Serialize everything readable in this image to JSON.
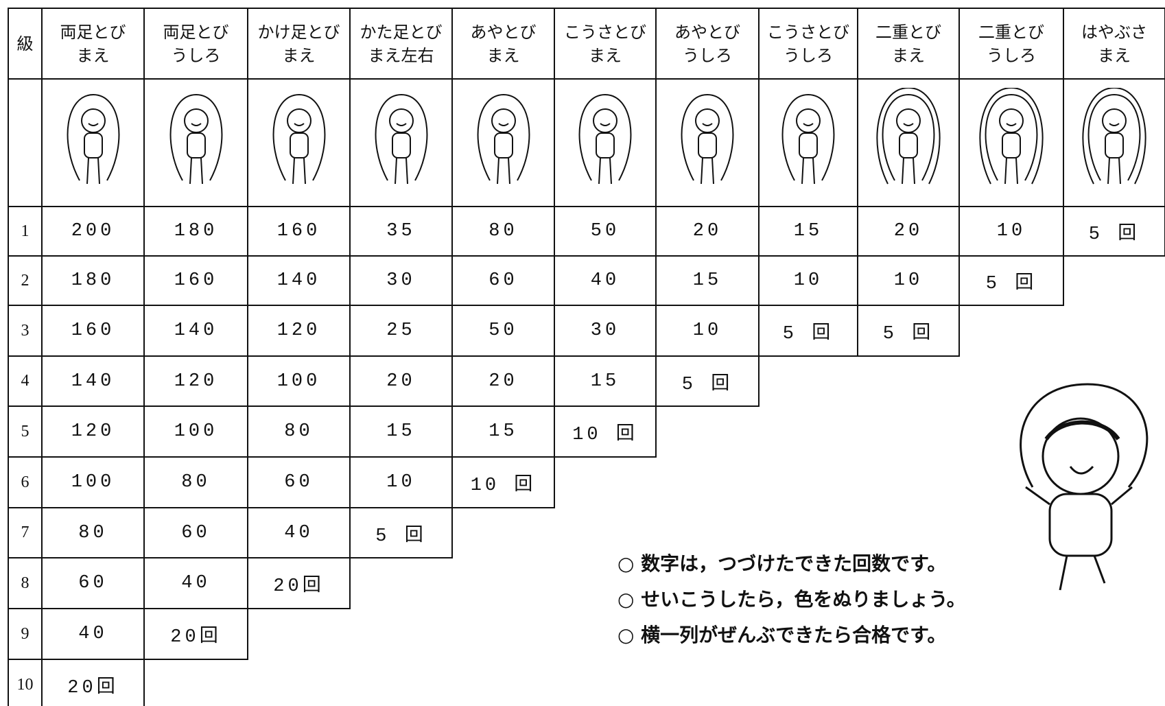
{
  "table": {
    "grade_header": "級",
    "columns": [
      [
        "両足とび",
        "まえ"
      ],
      [
        "両足とび",
        "うしろ"
      ],
      [
        "かけ足とび",
        "まえ"
      ],
      [
        "かた足とび",
        "まえ左右"
      ],
      [
        "あやとび",
        "まえ"
      ],
      [
        "こうさとび",
        "まえ"
      ],
      [
        "あやとび",
        "うしろ"
      ],
      [
        "こうさとび",
        "うしろ"
      ],
      [
        "二重とび",
        "まえ"
      ],
      [
        "二重とび",
        "うしろ"
      ],
      [
        "はやぶさ",
        "まえ"
      ]
    ],
    "rows": [
      {
        "grade": "1",
        "cells": [
          "200",
          "180",
          "160",
          "35",
          "80",
          "50",
          "20",
          "15",
          "20",
          "10",
          "5 回"
        ]
      },
      {
        "grade": "2",
        "cells": [
          "180",
          "160",
          "140",
          "30",
          "60",
          "40",
          "15",
          "10",
          "10",
          "5 回"
        ]
      },
      {
        "grade": "3",
        "cells": [
          "160",
          "140",
          "120",
          "25",
          "50",
          "30",
          "10",
          "5 回",
          "5 回"
        ]
      },
      {
        "grade": "4",
        "cells": [
          "140",
          "120",
          "100",
          "20",
          "20",
          "15",
          "5 回"
        ]
      },
      {
        "grade": "5",
        "cells": [
          "120",
          "100",
          "80",
          "15",
          "15",
          "10 回"
        ]
      },
      {
        "grade": "6",
        "cells": [
          "100",
          "80",
          "60",
          "10",
          "10 回"
        ]
      },
      {
        "grade": "7",
        "cells": [
          "80",
          "60",
          "40",
          "5 回"
        ]
      },
      {
        "grade": "8",
        "cells": [
          "60",
          "40",
          "20回"
        ]
      },
      {
        "grade": "9",
        "cells": [
          "40",
          "20回"
        ]
      },
      {
        "grade": "10",
        "cells": [
          "20回"
        ]
      }
    ]
  },
  "notes": [
    "○ 数字は，つづけたできた回数です。",
    "○ せいこうしたら，色をぬりましょう。",
    "○ 横一列がぜんぶできたら合格です。"
  ]
}
